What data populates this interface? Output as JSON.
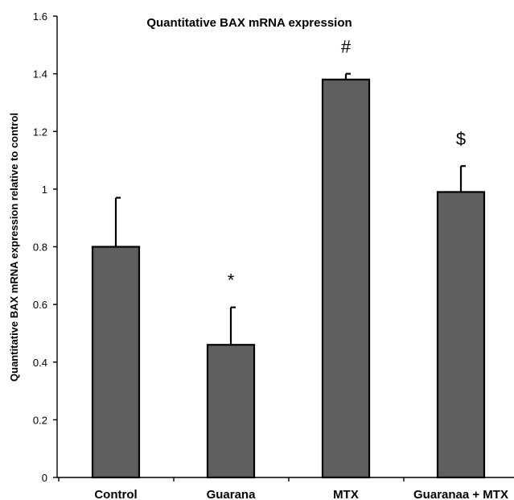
{
  "chart_data": {
    "type": "bar",
    "title": "Quantitative BAX mRNA expression",
    "xlabel": "",
    "ylabel": "Quantitative BAX mRNA expression relative to control",
    "categories": [
      "Control",
      "Guarana",
      "MTX",
      "Guaranaa + MTX"
    ],
    "values": [
      0.8,
      0.46,
      1.38,
      0.99
    ],
    "errors": [
      0.17,
      0.13,
      0.02,
      0.09
    ],
    "annotations": [
      "",
      "*",
      "#",
      "$"
    ],
    "ylim": [
      0,
      1.6
    ],
    "yticks": [
      "0",
      "0.2",
      "0.4",
      "0.6",
      "0.8",
      "1",
      "1.2",
      "1.4",
      "1.6"
    ],
    "grid": false,
    "legend": "none",
    "bar_color": "#5f5f5f"
  }
}
